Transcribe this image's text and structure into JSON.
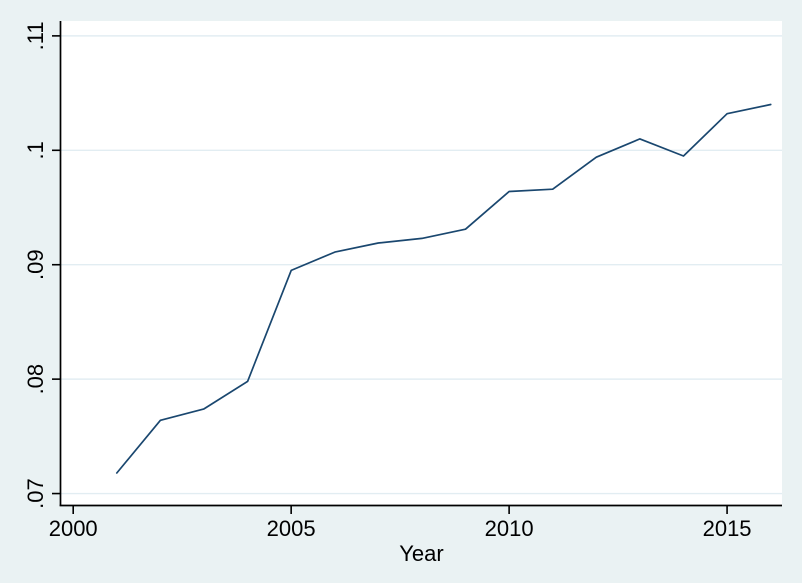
{
  "window": {
    "kind": "stata-style-line-graph",
    "title": ""
  },
  "colors": {
    "background": "#eaf2f3",
    "plot_background": "#ffffff",
    "gridline": "#e2edf2",
    "axis": "#000000",
    "text": "#000000",
    "series_line": "#1a476f"
  },
  "chart_data": {
    "type": "line",
    "title": "",
    "xlabel": "Year",
    "ylabel": "",
    "legend": "none",
    "grid": "horizontal-only",
    "x": [
      2001,
      2002,
      2003,
      2004,
      2005,
      2006,
      2007,
      2008,
      2009,
      2010,
      2011,
      2012,
      2013,
      2014,
      2015,
      2016
    ],
    "values": [
      0.0718,
      0.0764,
      0.0774,
      0.0798,
      0.0895,
      0.0911,
      0.0919,
      0.0923,
      0.0931,
      0.0964,
      0.0966,
      0.0994,
      0.101,
      0.0995,
      0.1032,
      0.104
    ],
    "xticks": {
      "values": [
        2000,
        2005,
        2010,
        2015
      ],
      "labels": [
        "2000",
        "2005",
        "2010",
        "2015"
      ]
    },
    "yticks": {
      "values": [
        0.07,
        0.08,
        0.09,
        0.1,
        0.11
      ],
      "labels": [
        ".07",
        ".08",
        ".09",
        ".1",
        ".11"
      ]
    },
    "xlim": [
      1999.72,
      2016.26
    ],
    "ylim": [
      0.069,
      0.1113
    ]
  }
}
